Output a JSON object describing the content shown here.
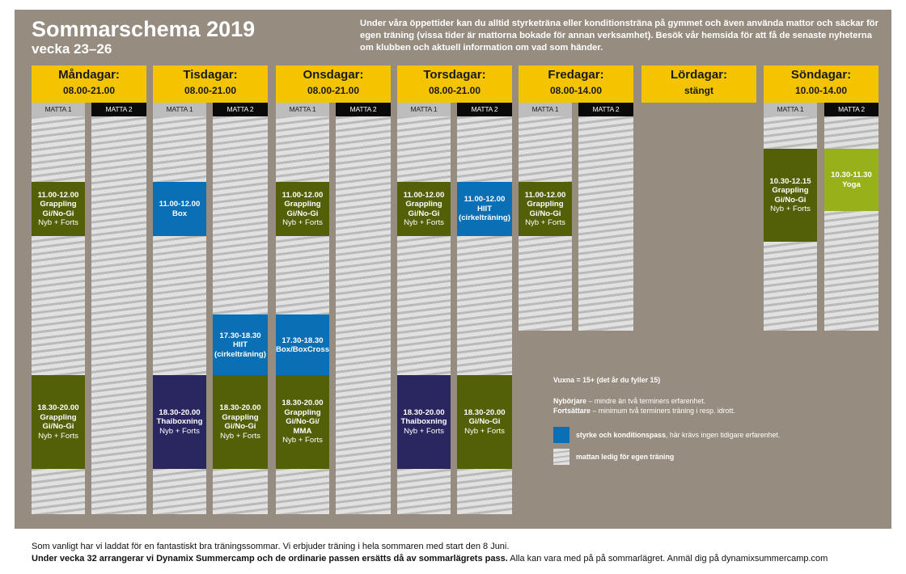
{
  "header": {
    "title": "Sommarschema 2019",
    "subtitle": "vecka 23–26",
    "intro": "Under våra öppettider kan du alltid styrketräna eller konditionsträna på gymmet och även använda mattor och säckar för egen träning (vissa tider är mattorna bokade för annan verksamhet). Besök vår hemsida för att få de senaste nyheterna om klubben och aktuell information om vad som händer."
  },
  "mat_labels": {
    "mat1": "MATTA 1",
    "mat2": "MATTA 2"
  },
  "days": [
    {
      "name": "Måndagar:",
      "hours": "08.00-21.00"
    },
    {
      "name": "Tisdagar:",
      "hours": "08.00-21.00"
    },
    {
      "name": "Onsdagar:",
      "hours": "08.00-21.00"
    },
    {
      "name": "Torsdagar:",
      "hours": "08.00-21.00"
    },
    {
      "name": "Fredagar:",
      "hours": "08.00-14.00"
    },
    {
      "name": "Lördagar:",
      "hours": "stängt"
    },
    {
      "name": "Söndagar:",
      "hours": "10.00-14.00"
    }
  ],
  "sessions": {
    "mon_m1_a": {
      "time": "11.00-12.00",
      "l1": "Grappling",
      "l2": "Gi/No-Gi",
      "level": "Nyb + Forts",
      "color": "#536008"
    },
    "mon_m1_b": {
      "time": "18.30-20.00",
      "l1": "Grappling",
      "l2": "Gi/No-Gi",
      "level": "Nyb + Forts",
      "color": "#536008"
    },
    "tue_m1_a": {
      "time": "11.00-12.00",
      "l1": "Box",
      "color": "#0a6fb5"
    },
    "tue_m2_a": {
      "time": "17.30-18.30",
      "l1": "HIIT",
      "l2": "(cirkelträning)",
      "color": "#0a6fb5"
    },
    "tue_m1_b": {
      "time": "18.30-20.00",
      "l1": "Thaiboxning",
      "level": "Nyb + Forts",
      "color": "#2a2660"
    },
    "tue_m2_b": {
      "time": "18.30-20.00",
      "l1": "Grappling",
      "l2": "Gi/No-Gi",
      "level": "Nyb + Forts",
      "color": "#536008"
    },
    "wed_m1_a": {
      "time": "11.00-12.00",
      "l1": "Grappling",
      "l2": "Gi/No-Gi",
      "level": "Nyb + Forts",
      "color": "#536008"
    },
    "wed_m1_b": {
      "time": "17.30-18.30",
      "l1": "Box/BoxCross",
      "color": "#0a6fb5"
    },
    "wed_m1_c": {
      "time": "18.30-20.00",
      "l1": "Grappling",
      "l2": "Gi/No-Gi/",
      "l3": "MMA",
      "level": "Nyb + Forts",
      "color": "#536008"
    },
    "thu_m1_a": {
      "time": "11.00-12.00",
      "l1": "Grappling",
      "l2": "Gi/No-Gi",
      "level": "Nyb + Forts",
      "color": "#536008"
    },
    "thu_m2_a": {
      "time": "11.00-12.00",
      "l1": "HIIT",
      "l2": "(cirkelträning)",
      "color": "#0a6fb5"
    },
    "thu_m1_b": {
      "time": "18.30-20.00",
      "l1": "Thaiboxning",
      "level": "Nyb + Forts",
      "color": "#2a2660"
    },
    "thu_m2_b": {
      "time": "18.30-20.00",
      "l1": "Gi/No-Gi",
      "level": "Nyb + Forts",
      "color": "#536008"
    },
    "fri_m1_a": {
      "time": "11.00-12.00",
      "l1": "Grappling",
      "l2": "Gi/No-Gi",
      "level": "Nyb + Forts",
      "color": "#536008"
    },
    "sun_m1_a": {
      "time": "10.30-12.15",
      "l1": "Grappling",
      "l2": "Gi/No-Gi",
      "level": "Nyb + Forts",
      "color": "#536008"
    },
    "sun_m2_a": {
      "time": "10.30-11.30",
      "l1": "Yoga",
      "color": "#98b019"
    }
  },
  "legend": {
    "vuxna": "Vuxna = 15+ (det år du fyller 15)",
    "nyb_term": "Nybörjare",
    "nyb_desc": " – mindre än två terminers erfarenhet.",
    "forts_term": "Fortsättare",
    "forts_desc": " – minimum två terminers träning i resp. idrott.",
    "blue_term": "styrke och konditionspass",
    "blue_desc": ", här krävs ingen tidigare erfarenhet.",
    "free_text": "mattan ledig för egen träning"
  },
  "footer": {
    "line1": "Som vanligt har vi laddat för en fantastiskt bra träningssommar. Vi erbjuder träning i hela sommaren med start den 8 Juni.",
    "line2_bold": "Under vecka 32 arrangerar vi Dynamix Summercamp och de ordinarie passen ersätts då av sommarlägrets pass.",
    "line2_rest": " Alla kan vara med på  på sommarlägret. Anmäl dig på dynamixsummercamp.com"
  }
}
